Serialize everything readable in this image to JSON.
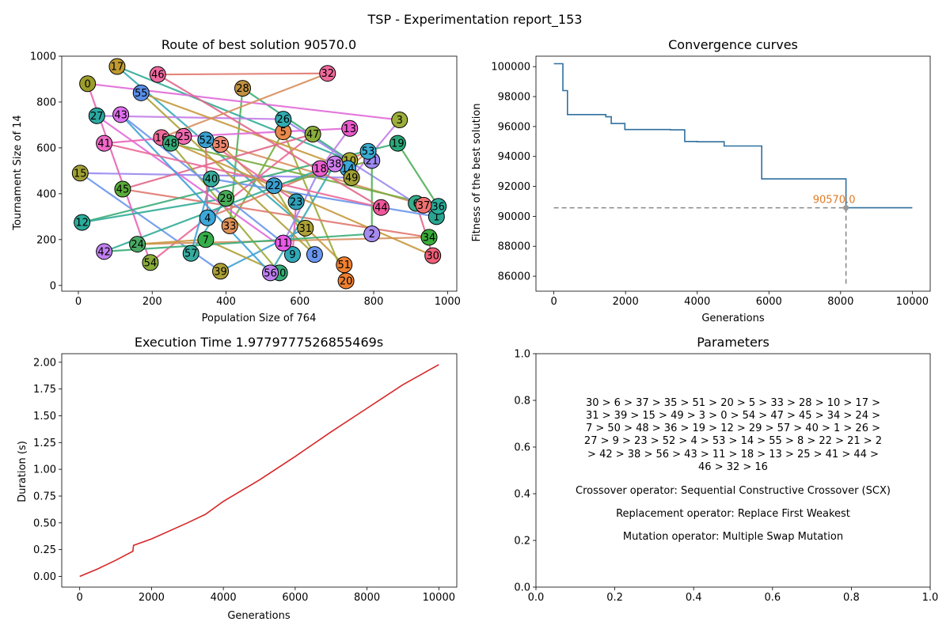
{
  "suptitle": "TSP - Experimentation report_153",
  "chart_data": [
    {
      "type": "scatter",
      "title": "Route of best solution 90570.0",
      "xlabel": "Population Size of 764",
      "ylabel": "Tournament Size of 14",
      "xlim": [
        -45,
        1025
      ],
      "ylim": [
        -25,
        1000
      ],
      "xticks": [
        0,
        200,
        400,
        600,
        800,
        1000
      ],
      "yticks": [
        0,
        200,
        400,
        600,
        800,
        1000
      ],
      "cities": [
        {
          "id": 0,
          "x": 25,
          "y": 880,
          "color": "#9c9c2a"
        },
        {
          "id": 1,
          "x": 970,
          "y": 300,
          "color": "#2aa490"
        },
        {
          "id": 2,
          "x": 795,
          "y": 225,
          "color": "#a58bf0"
        },
        {
          "id": 3,
          "x": 870,
          "y": 722,
          "color": "#9cad3a"
        },
        {
          "id": 4,
          "x": 350,
          "y": 295,
          "color": "#3da8d8"
        },
        {
          "id": 5,
          "x": 555,
          "y": 670,
          "color": "#e8884a"
        },
        {
          "id": 6,
          "x": 915,
          "y": 358,
          "color": "#36ad8a"
        },
        {
          "id": 7,
          "x": 345,
          "y": 200,
          "color": "#36ad4a"
        },
        {
          "id": 8,
          "x": 640,
          "y": 135,
          "color": "#6a96f0"
        },
        {
          "id": 9,
          "x": 580,
          "y": 135,
          "color": "#30a8b8"
        },
        {
          "id": 10,
          "x": 735,
          "y": 545,
          "color": "#a8a832"
        },
        {
          "id": 11,
          "x": 555,
          "y": 185,
          "color": "#e85ae8"
        },
        {
          "id": 12,
          "x": 10,
          "y": 275,
          "color": "#2aac9a"
        },
        {
          "id": 13,
          "x": 735,
          "y": 685,
          "color": "#e85acb"
        },
        {
          "id": 14,
          "x": 730,
          "y": 510,
          "color": "#3aa8d8"
        },
        {
          "id": 15,
          "x": 5,
          "y": 490,
          "color": "#a0a036"
        },
        {
          "id": 16,
          "x": 225,
          "y": 645,
          "color": "#f06a9a"
        },
        {
          "id": 17,
          "x": 105,
          "y": 955,
          "color": "#c09a30"
        },
        {
          "id": 18,
          "x": 655,
          "y": 510,
          "color": "#ea60d0"
        },
        {
          "id": 19,
          "x": 865,
          "y": 620,
          "color": "#2aa87a"
        },
        {
          "id": 20,
          "x": 725,
          "y": 20,
          "color": "#f08030"
        },
        {
          "id": 21,
          "x": 795,
          "y": 545,
          "color": "#9c8af0"
        },
        {
          "id": 22,
          "x": 530,
          "y": 435,
          "color": "#3aa0d0"
        },
        {
          "id": 23,
          "x": 590,
          "y": 365,
          "color": "#30a0b8"
        },
        {
          "id": 24,
          "x": 160,
          "y": 180,
          "color": "#4aaa64"
        },
        {
          "id": 25,
          "x": 285,
          "y": 650,
          "color": "#f06ab0"
        },
        {
          "id": 26,
          "x": 555,
          "y": 725,
          "color": "#30acb0"
        },
        {
          "id": 27,
          "x": 50,
          "y": 740,
          "color": "#2aa8a0"
        },
        {
          "id": 28,
          "x": 445,
          "y": 860,
          "color": "#c09040"
        },
        {
          "id": 29,
          "x": 400,
          "y": 380,
          "color": "#48ad58"
        },
        {
          "id": 30,
          "x": 960,
          "y": 130,
          "color": "#f06078"
        },
        {
          "id": 31,
          "x": 615,
          "y": 250,
          "color": "#aca036"
        },
        {
          "id": 32,
          "x": 675,
          "y": 925,
          "color": "#f06a9c"
        },
        {
          "id": 33,
          "x": 410,
          "y": 260,
          "color": "#e09058"
        },
        {
          "id": 34,
          "x": 950,
          "y": 210,
          "color": "#3aac3a"
        },
        {
          "id": 35,
          "x": 385,
          "y": 615,
          "color": "#f08870"
        },
        {
          "id": 36,
          "x": 975,
          "y": 345,
          "color": "#2aac9a"
        },
        {
          "id": 37,
          "x": 935,
          "y": 350,
          "color": "#f07070"
        },
        {
          "id": 38,
          "x": 695,
          "y": 530,
          "color": "#d080f0"
        },
        {
          "id": 39,
          "x": 385,
          "y": 62,
          "color": "#aca036"
        },
        {
          "id": 40,
          "x": 360,
          "y": 465,
          "color": "#36ac9a"
        },
        {
          "id": 41,
          "x": 70,
          "y": 620,
          "color": "#f06ac8"
        },
        {
          "id": 42,
          "x": 70,
          "y": 148,
          "color": "#c080f0"
        },
        {
          "id": 43,
          "x": 115,
          "y": 745,
          "color": "#e070f0"
        },
        {
          "id": 44,
          "x": 820,
          "y": 340,
          "color": "#f0589c"
        },
        {
          "id": 45,
          "x": 120,
          "y": 420,
          "color": "#5aac3a"
        },
        {
          "id": 46,
          "x": 215,
          "y": 920,
          "color": "#f06aa0"
        },
        {
          "id": 47,
          "x": 635,
          "y": 660,
          "color": "#8aac3a"
        },
        {
          "id": 48,
          "x": 250,
          "y": 620,
          "color": "#36ac78"
        },
        {
          "id": 49,
          "x": 740,
          "y": 470,
          "color": "#a0a036"
        },
        {
          "id": 50,
          "x": 545,
          "y": 55,
          "color": "#36ac78"
        },
        {
          "id": 51,
          "x": 720,
          "y": 90,
          "color": "#f08030"
        },
        {
          "id": 52,
          "x": 345,
          "y": 635,
          "color": "#3aa0d0"
        },
        {
          "id": 53,
          "x": 785,
          "y": 585,
          "color": "#3aacd0"
        },
        {
          "id": 54,
          "x": 195,
          "y": 100,
          "color": "#8aac3a"
        },
        {
          "id": 55,
          "x": 170,
          "y": 840,
          "color": "#5a8ee8"
        },
        {
          "id": 56,
          "x": 520,
          "y": 55,
          "color": "#c080f0"
        },
        {
          "id": 57,
          "x": 305,
          "y": 140,
          "color": "#36aca0"
        }
      ],
      "route": [
        30,
        6,
        37,
        35,
        51,
        20,
        5,
        33,
        28,
        10,
        17,
        31,
        39,
        15,
        49,
        3,
        0,
        54,
        47,
        45,
        34,
        24,
        7,
        50,
        48,
        36,
        19,
        12,
        29,
        57,
        40,
        1,
        26,
        27,
        9,
        23,
        52,
        4,
        53,
        14,
        55,
        8,
        22,
        21,
        2,
        42,
        38,
        56,
        43,
        11,
        18,
        13,
        25,
        41,
        44,
        46,
        32,
        16
      ],
      "segment_colors": [
        "#e06a8a",
        "#e07a70",
        "#d89060",
        "#c89a40",
        "#b0a038",
        "#9caa38",
        "#78ae40",
        "#50b05a",
        "#3cae78",
        "#34ac98",
        "#38aab8",
        "#40a2d8",
        "#6a96ec",
        "#9a88f0",
        "#c27ee8",
        "#e06ad8",
        "#e866b8",
        "#ec6a98"
      ]
    },
    {
      "type": "line",
      "title": "Convergence curves",
      "xlabel": "Generations",
      "ylabel": "Fitness of the best solution",
      "xlim": [
        -500,
        10500
      ],
      "ylim": [
        85000,
        100700
      ],
      "xticks": [
        0,
        2000,
        4000,
        6000,
        8000,
        10000
      ],
      "yticks": [
        86000,
        88000,
        90000,
        92000,
        94000,
        96000,
        98000,
        100000
      ],
      "color": "#2f6f9f",
      "steps": [
        [
          0,
          100200
        ],
        [
          250,
          100200
        ],
        [
          250,
          98400
        ],
        [
          380,
          98400
        ],
        [
          380,
          96800
        ],
        [
          1450,
          96800
        ],
        [
          1450,
          96650
        ],
        [
          1600,
          96650
        ],
        [
          1600,
          96200
        ],
        [
          1980,
          96200
        ],
        [
          1980,
          95800
        ],
        [
          3250,
          95800
        ],
        [
          3250,
          95780
        ],
        [
          3650,
          95780
        ],
        [
          3650,
          95000
        ],
        [
          4000,
          95000
        ],
        [
          4000,
          94980
        ],
        [
          4750,
          94980
        ],
        [
          4750,
          94700
        ],
        [
          5800,
          94700
        ],
        [
          5800,
          92500
        ],
        [
          8150,
          92500
        ],
        [
          8150,
          90570
        ],
        [
          10000,
          90570
        ]
      ],
      "best": {
        "x": 8150,
        "y": 90570,
        "label": "90570.0",
        "label_color": "#e07b25"
      },
      "guide_ymin": 85500
    },
    {
      "type": "line",
      "title": "Execution Time 1.9779777526855469s",
      "xlabel": "Generations",
      "ylabel": "Duration (s)",
      "xlim": [
        -500,
        10500
      ],
      "ylim": [
        -0.1,
        2.08
      ],
      "xticks": [
        0,
        2000,
        4000,
        6000,
        8000,
        10000
      ],
      "yticks": [
        "0.00",
        "0.25",
        "0.50",
        "0.75",
        "1.00",
        "1.25",
        "1.50",
        "1.75",
        "2.00"
      ],
      "color": "#d62728",
      "points": [
        [
          0,
          0
        ],
        [
          500,
          0.07
        ],
        [
          1000,
          0.15
        ],
        [
          1480,
          0.235
        ],
        [
          1500,
          0.29
        ],
        [
          2000,
          0.35
        ],
        [
          3000,
          0.5
        ],
        [
          3500,
          0.58
        ],
        [
          4000,
          0.7
        ],
        [
          5000,
          0.9
        ],
        [
          6000,
          1.12
        ],
        [
          7000,
          1.35
        ],
        [
          8000,
          1.57
        ],
        [
          9000,
          1.79
        ],
        [
          10000,
          1.978
        ]
      ]
    },
    {
      "type": "table",
      "title": "Parameters",
      "xlim": [
        0,
        1
      ],
      "ylim": [
        0,
        1
      ],
      "xticks": [
        "0.0",
        "0.2",
        "0.4",
        "0.6",
        "0.8",
        "1.0"
      ],
      "yticks": [
        "0.0",
        "0.2",
        "0.4",
        "0.6",
        "0.8",
        "1.0"
      ],
      "route_lines": [
        "30 > 6 > 37 > 35 > 51 > 20 > 5 > 33 > 28 > 10 > 17 >",
        "31 > 39 > 15 > 49 > 3 > 0 > 54 > 47 > 45 > 34 > 24 >",
        "7 > 50 > 48 > 36 > 19 > 12 > 29 > 57 > 40 > 1 > 26 >",
        "27 > 9 > 23 > 52 > 4 > 53 > 14 > 55 > 8 > 22 > 21 > 2",
        "> 42 > 38 > 56 > 43 > 11 > 18 > 13 > 25 > 41 > 44 >",
        "46 > 32 > 16"
      ],
      "crossover": "Crossover operator: Sequential Constructive Crossover (SCX)",
      "replacement": "Replacement operator: Replace First Weakest",
      "mutation": "Mutation operator: Multiple Swap Mutation"
    }
  ]
}
